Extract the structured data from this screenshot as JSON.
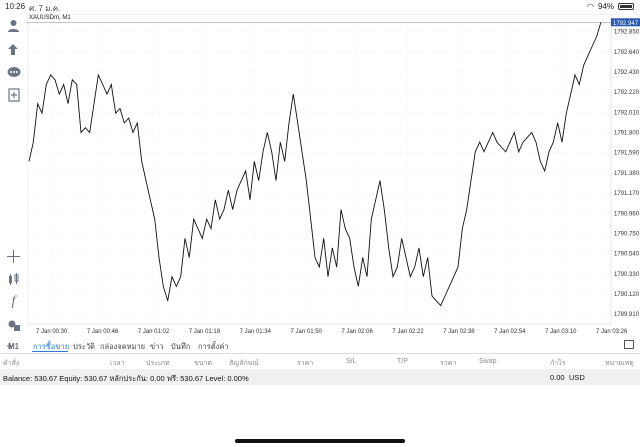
{
  "status_bar": {
    "time": "10:26",
    "date": "ศ. 7 ม.ค.",
    "battery": "94%"
  },
  "symbol": "XAUUSDm, M1",
  "current_price": "1792.947",
  "price_axis": [
    "1792.850",
    "1792.640",
    "1792.430",
    "1792.220",
    "1792.010",
    "1791.800",
    "1791.590",
    "1791.380",
    "1791.170",
    "1790.960",
    "1790.750",
    "1790.540",
    "1790.330",
    "1790.120",
    "1789.910"
  ],
  "time_axis": [
    "7 Jan 00:30",
    "7 Jan 00:46",
    "7 Jan 01:02",
    "7 Jan 01:18",
    "7 Jan 01:34",
    "7 Jan 01:50",
    "7 Jan 02:06",
    "7 Jan 02:22",
    "7 Jan 02:38",
    "7 Jan 02:54",
    "7 Jan 03:10",
    "7 Jan 03:26"
  ],
  "toolbar": {
    "timeframe": "M1"
  },
  "chart_data": {
    "type": "line",
    "symbol": "XAUUSDm",
    "timeframe": "M1",
    "ylim": [
      1789.8,
      1793.0
    ],
    "values": [
      1791.5,
      1791.7,
      1792.1,
      1792.0,
      1792.3,
      1792.4,
      1792.35,
      1792.2,
      1792.3,
      1792.1,
      1792.35,
      1792.3,
      1791.8,
      1791.85,
      1791.8,
      1792.1,
      1792.4,
      1792.3,
      1792.2,
      1792.3,
      1792.0,
      1792.05,
      1791.9,
      1791.95,
      1791.8,
      1791.9,
      1791.5,
      1791.3,
      1791.1,
      1790.9,
      1790.5,
      1790.2,
      1790.05,
      1790.3,
      1790.2,
      1790.3,
      1790.7,
      1790.5,
      1790.9,
      1790.8,
      1790.7,
      1790.9,
      1790.8,
      1791.1,
      1790.9,
      1791.0,
      1791.2,
      1791.0,
      1791.2,
      1791.3,
      1791.4,
      1791.1,
      1791.5,
      1791.3,
      1791.6,
      1791.8,
      1791.6,
      1791.3,
      1791.7,
      1791.5,
      1791.9,
      1792.2,
      1791.9,
      1791.6,
      1791.3,
      1790.9,
      1790.5,
      1790.4,
      1790.7,
      1790.3,
      1790.6,
      1790.4,
      1791.0,
      1790.8,
      1790.7,
      1790.4,
      1790.2,
      1790.5,
      1790.3,
      1790.9,
      1791.1,
      1791.3,
      1791.0,
      1790.6,
      1790.3,
      1790.4,
      1790.7,
      1790.5,
      1790.3,
      1790.4,
      1790.6,
      1790.3,
      1790.5,
      1790.1,
      1790.05,
      1790.0,
      1790.1,
      1790.2,
      1790.3,
      1790.4,
      1790.8,
      1791.0,
      1791.3,
      1791.6,
      1791.7,
      1791.6,
      1791.7,
      1791.8,
      1791.7,
      1791.65,
      1791.6,
      1791.7,
      1791.8,
      1791.6,
      1791.7,
      1791.75,
      1791.8,
      1791.7,
      1791.5,
      1791.4,
      1791.6,
      1791.7,
      1791.9,
      1791.7,
      1792.0,
      1792.2,
      1792.4,
      1792.3,
      1792.5,
      1792.6,
      1792.7,
      1792.8,
      1792.95
    ]
  },
  "tabs": [
    {
      "label": "การซื้อขาย",
      "active": true
    },
    {
      "label": "ประวัติ",
      "active": false
    },
    {
      "label": "กล่องจดหมาย",
      "active": false
    },
    {
      "label": "ข่าว",
      "active": false
    },
    {
      "label": "บันทึก",
      "active": false
    },
    {
      "label": "การตั้งค่า",
      "active": false
    }
  ],
  "columns": [
    "คำสั่ง",
    "เวลา",
    "ประเภท",
    "ขนาด",
    "สัญลักษณ์",
    "ราคา",
    "S/L",
    "T/P",
    "ราคา",
    "Swap",
    "กำไร",
    "หมายเหตุ"
  ],
  "balance": {
    "text": "Balance: 530.67 Equity: 530.67 หลักประกัน: 0.00 ฟรี: 530.67 Level: 0.00%",
    "profit": "0.00",
    "currency": "USD"
  }
}
